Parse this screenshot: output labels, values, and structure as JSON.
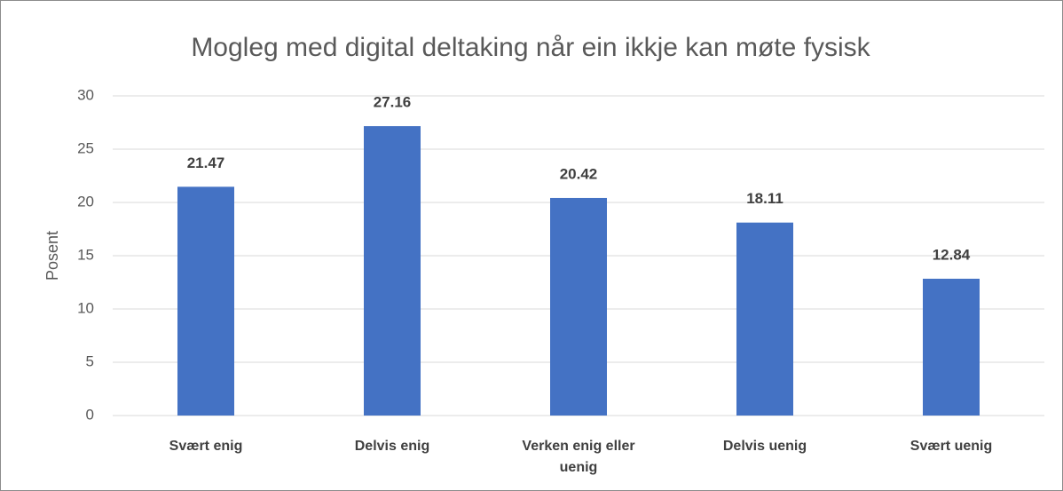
{
  "chart_data": {
    "type": "bar",
    "title": "Mogleg med digital deltaking når ein ikkje kan møte fysisk",
    "y_label": "Posent",
    "categories": [
      "Svært enig",
      "Delvis enig",
      "Verken enig eller uenig",
      "Delvis uenig",
      "Svært uenig"
    ],
    "values": [
      21.47,
      27.16,
      20.42,
      18.11,
      12.84
    ],
    "color": "#4472c4",
    "ylim": [
      0,
      30
    ],
    "yticks": [
      0,
      5,
      10,
      15,
      20,
      25,
      30
    ],
    "grid": true
  }
}
